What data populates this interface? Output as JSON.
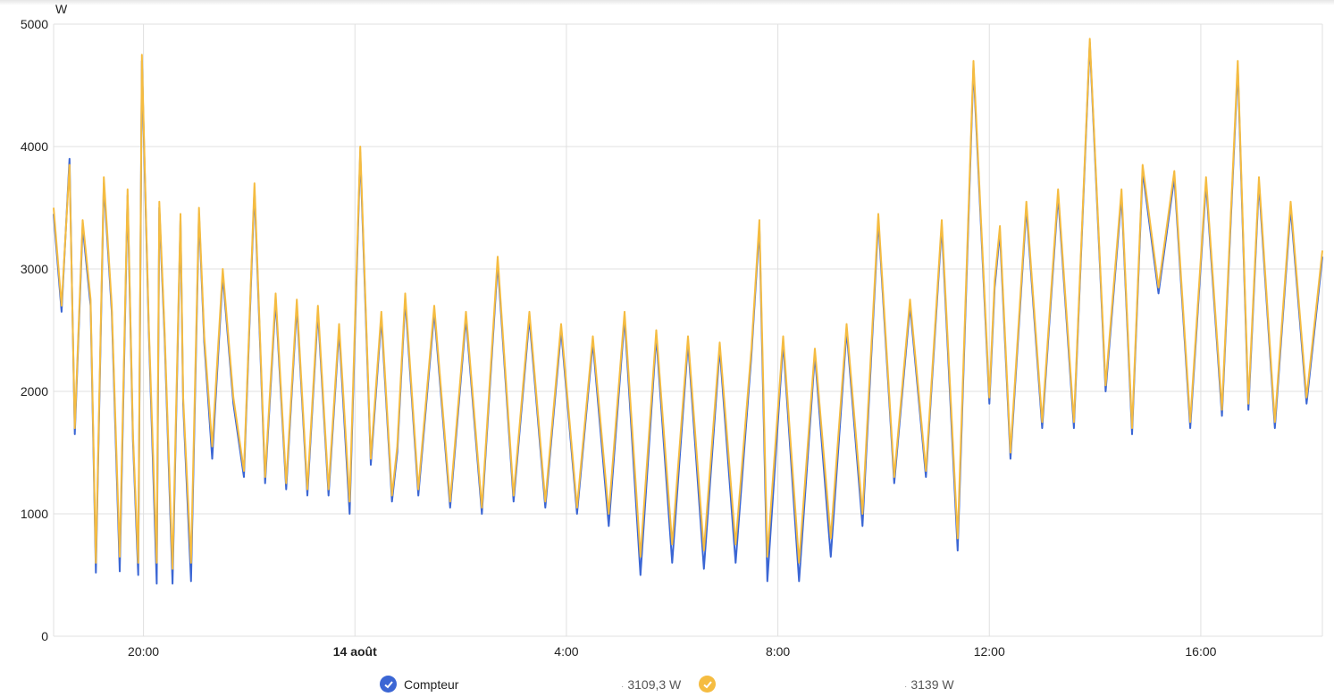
{
  "chart_data": {
    "type": "line",
    "ylabel": "W",
    "ylim": [
      0,
      5000
    ],
    "y_ticks": [
      "0",
      "1000",
      "2000",
      "3000",
      "4000",
      "5000"
    ],
    "x_ticks": [
      "20:00",
      "14 août",
      "4:00",
      "8:00",
      "12:00",
      "16:00"
    ],
    "x_start_hour": 18.3,
    "x_end_hour": 42.3,
    "grid": true,
    "colors": {
      "compteur": "#3b66d4",
      "second": "#f5bc41"
    },
    "series": [
      {
        "name": "Compteur",
        "color": "#3b66d4",
        "x_hours": [
          18.3,
          18.45,
          18.6,
          18.7,
          18.85,
          19.0,
          19.1,
          19.25,
          19.4,
          19.55,
          19.7,
          19.8,
          19.9,
          19.97,
          20.1,
          20.25,
          20.3,
          20.4,
          20.55,
          20.7,
          20.75,
          20.9,
          21.05,
          21.15,
          21.3,
          21.5,
          21.7,
          21.9,
          22.1,
          22.3,
          22.5,
          22.7,
          22.9,
          23.1,
          23.3,
          23.5,
          23.7,
          23.9,
          24.1,
          24.3,
          24.5,
          24.7,
          24.8,
          24.95,
          25.2,
          25.5,
          25.8,
          26.1,
          26.4,
          26.7,
          27.0,
          27.3,
          27.6,
          27.9,
          28.2,
          28.5,
          28.8,
          29.1,
          29.4,
          29.7,
          30.0,
          30.3,
          30.6,
          30.9,
          31.2,
          31.5,
          31.65,
          31.8,
          32.1,
          32.4,
          32.7,
          33.0,
          33.3,
          33.6,
          33.9,
          34.2,
          34.5,
          34.8,
          35.1,
          35.4,
          35.7,
          36.0,
          36.1,
          36.2,
          36.4,
          36.7,
          37.0,
          37.3,
          37.6,
          37.9,
          38.2,
          38.5,
          38.7,
          38.9,
          39.2,
          39.5,
          39.8,
          40.1,
          40.4,
          40.7,
          40.9,
          41.1,
          41.4,
          41.7,
          42.0,
          42.3
        ],
        "values": [
          3450,
          2650,
          3900,
          1650,
          3350,
          2700,
          520,
          3700,
          2650,
          530,
          3600,
          1600,
          500,
          4700,
          2500,
          430,
          3500,
          2450,
          430,
          3400,
          1900,
          450,
          3450,
          2400,
          1450,
          2950,
          1900,
          1300,
          3650,
          1250,
          2750,
          1200,
          2700,
          1150,
          2650,
          1150,
          2500,
          1000,
          3950,
          1400,
          2600,
          1100,
          1500,
          2750,
          1150,
          2650,
          1050,
          2600,
          1000,
          3050,
          1100,
          2600,
          1050,
          2500,
          1000,
          2400,
          900,
          2600,
          500,
          2450,
          600,
          2400,
          550,
          2350,
          600,
          2300,
          3350,
          450,
          2400,
          450,
          2300,
          650,
          2500,
          900,
          3400,
          1250,
          2700,
          1300,
          3350,
          700,
          4650,
          1900,
          2850,
          3300,
          1450,
          3500,
          1700,
          3600,
          1700,
          4850,
          2000,
          3600,
          1650,
          3800,
          2800,
          3750,
          1700,
          3700,
          1800,
          4650,
          1850,
          3700,
          1700,
          3500,
          1900,
          3100
        ]
      },
      {
        "name": "",
        "color": "#f5bc41",
        "x_hours": [
          18.3,
          18.45,
          18.6,
          18.7,
          18.85,
          19.0,
          19.1,
          19.25,
          19.4,
          19.55,
          19.7,
          19.8,
          19.9,
          19.97,
          20.1,
          20.25,
          20.3,
          20.4,
          20.55,
          20.7,
          20.75,
          20.9,
          21.05,
          21.15,
          21.3,
          21.5,
          21.7,
          21.9,
          22.1,
          22.3,
          22.5,
          22.7,
          22.9,
          23.1,
          23.3,
          23.5,
          23.7,
          23.9,
          24.1,
          24.3,
          24.5,
          24.7,
          24.8,
          24.95,
          25.2,
          25.5,
          25.8,
          26.1,
          26.4,
          26.7,
          27.0,
          27.3,
          27.6,
          27.9,
          28.2,
          28.5,
          28.8,
          29.1,
          29.4,
          29.7,
          30.0,
          30.3,
          30.6,
          30.9,
          31.2,
          31.5,
          31.65,
          31.8,
          32.1,
          32.4,
          32.7,
          33.0,
          33.3,
          33.6,
          33.9,
          34.2,
          34.5,
          34.8,
          35.1,
          35.4,
          35.7,
          36.0,
          36.1,
          36.2,
          36.4,
          36.7,
          37.0,
          37.3,
          37.6,
          37.9,
          38.2,
          38.5,
          38.7,
          38.9,
          39.2,
          39.5,
          39.8,
          40.1,
          40.4,
          40.7,
          40.9,
          41.1,
          41.4,
          41.7,
          42.0,
          42.3
        ],
        "values": [
          3500,
          2700,
          3850,
          1700,
          3400,
          2750,
          600,
          3750,
          2700,
          650,
          3650,
          1650,
          600,
          4750,
          2550,
          600,
          3550,
          2500,
          550,
          3450,
          1950,
          600,
          3500,
          2450,
          1550,
          3000,
          1950,
          1350,
          3700,
          1300,
          2800,
          1250,
          2750,
          1200,
          2700,
          1200,
          2550,
          1100,
          4000,
          1450,
          2650,
          1150,
          1550,
          2800,
          1200,
          2700,
          1100,
          2650,
          1050,
          3100,
          1150,
          2650,
          1100,
          2550,
          1050,
          2450,
          1000,
          2650,
          650,
          2500,
          750,
          2450,
          700,
          2400,
          750,
          2350,
          3400,
          650,
          2450,
          600,
          2350,
          800,
          2550,
          1000,
          3450,
          1300,
          2750,
          1350,
          3400,
          800,
          4700,
          1950,
          2900,
          3350,
          1500,
          3550,
          1750,
          3650,
          1750,
          4880,
          2050,
          3650,
          1700,
          3850,
          2850,
          3800,
          1750,
          3750,
          1850,
          4700,
          1900,
          3750,
          1750,
          3550,
          1950,
          3150
        ]
      }
    ]
  },
  "legend": {
    "items": [
      {
        "label": "Compteur",
        "color": "#3b66d4",
        "value": "3109,3 W"
      },
      {
        "label": "",
        "color": "#f5bc41",
        "value": "3139 W"
      }
    ]
  }
}
